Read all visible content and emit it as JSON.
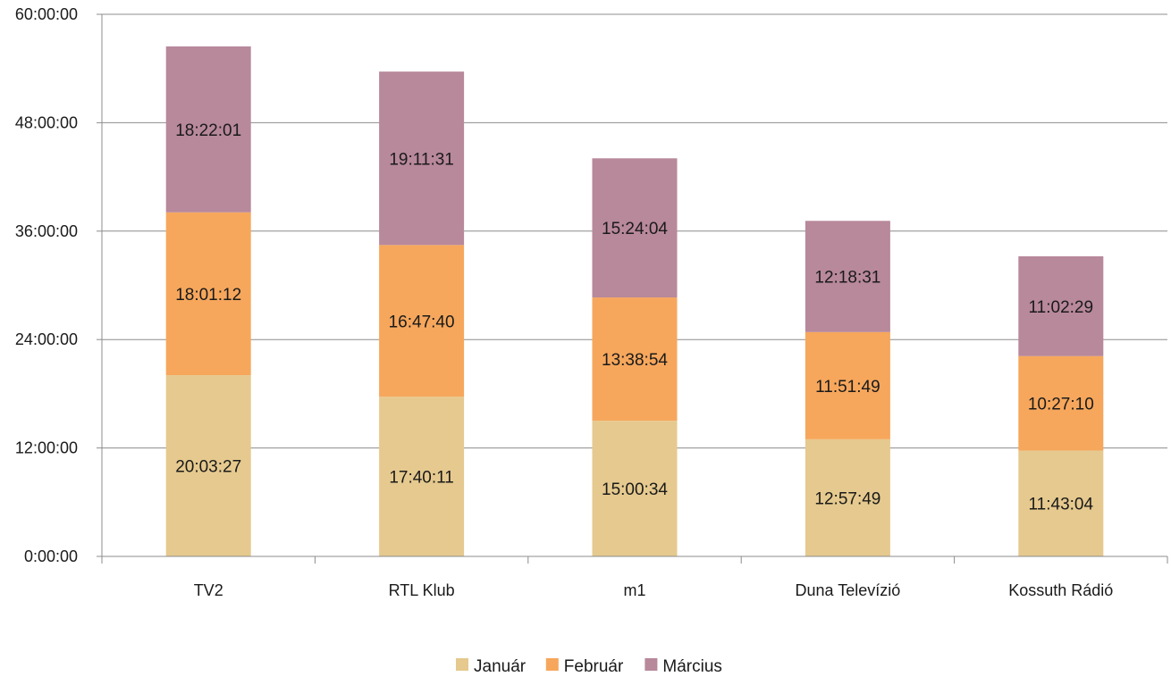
{
  "chart_data": {
    "type": "bar",
    "stacked": true,
    "categories": [
      "TV2",
      "RTL Klub",
      "m1",
      "Duna Televízió",
      "Kossuth Rádió"
    ],
    "series": [
      {
        "name": "Január",
        "color": "#E5C98E",
        "values": [
          "20:03:27",
          "17:40:11",
          "15:00:34",
          "12:57:49",
          "11:43:04"
        ]
      },
      {
        "name": "Február",
        "color": "#F6A75C",
        "values": [
          "18:01:12",
          "16:47:40",
          "13:38:54",
          "11:51:49",
          "10:27:10"
        ]
      },
      {
        "name": "Március",
        "color": "#B8889B",
        "values": [
          "18:22:01",
          "19:11:31",
          "15:24:04",
          "12:18:31",
          "11:02:29"
        ]
      }
    ],
    "ylim": [
      "0:00:00",
      "60:00:00"
    ],
    "yticks": [
      "0:00:00",
      "12:00:00",
      "24:00:00",
      "36:00:00",
      "48:00:00",
      "60:00:00"
    ],
    "grid": true,
    "legend_position": "bottom"
  }
}
